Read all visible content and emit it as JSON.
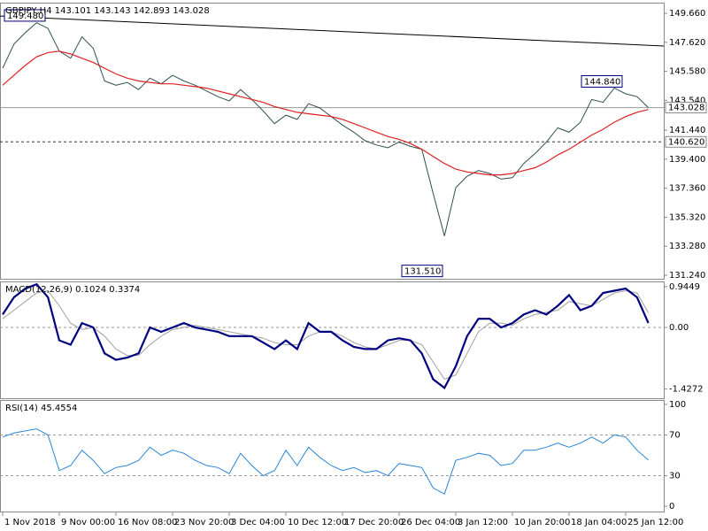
{
  "chart_data": [
    {
      "type": "price",
      "title": "GBPJPY,H4  143.101 143.143 142.893 143.028",
      "categories": [
        "1 Nov 2018",
        null,
        null,
        null,
        null,
        "9 Nov 00:00",
        null,
        null,
        null,
        null,
        "16 Nov 08:00",
        null,
        null,
        null,
        null,
        "23 Nov 20:00",
        null,
        null,
        null,
        null,
        "3 Dec 04:00",
        null,
        null,
        null,
        null,
        "10 Dec 12:00",
        null,
        null,
        null,
        null,
        "17 Dec 20:00",
        null,
        null,
        null,
        null,
        "26 Dec 04:00",
        null,
        null,
        null,
        null,
        "3 Jan 12:00",
        null,
        null,
        null,
        null,
        "10 Jan 20:00",
        null,
        null,
        null,
        null,
        "18 Jan 04:00",
        null,
        null,
        null,
        null,
        "25 Jan 12:00",
        null,
        null
      ],
      "series": [
        {
          "color": "#2f4f4f",
          "values": [
            145.8,
            147.5,
            148.3,
            149.0,
            148.6,
            147.0,
            146.5,
            148.0,
            147.2,
            144.9,
            144.6,
            144.8,
            144.3,
            145.1,
            144.7,
            145.3,
            144.9,
            144.6,
            144.2,
            143.8,
            143.5,
            144.3,
            143.6,
            142.8,
            141.9,
            142.5,
            142.2,
            143.3,
            143.0,
            142.4,
            141.8,
            141.3,
            140.7,
            140.4,
            140.2,
            140.6,
            140.3,
            140.1,
            137.0,
            134.0,
            137.4,
            138.2,
            138.6,
            138.4,
            138.0,
            138.1,
            139.1,
            139.8,
            140.6,
            141.6,
            141.3,
            142.0,
            143.6,
            143.4,
            144.4,
            144.0,
            143.8,
            143.028
          ]
        },
        {
          "color": "#e02020",
          "values": [
            144.6,
            145.3,
            146.0,
            146.6,
            146.9,
            147.0,
            146.8,
            146.5,
            146.2,
            145.8,
            145.4,
            145.1,
            144.9,
            144.8,
            144.7,
            144.7,
            144.6,
            144.5,
            144.4,
            144.2,
            144.0,
            143.8,
            143.6,
            143.4,
            143.1,
            142.9,
            142.7,
            142.6,
            142.5,
            142.4,
            142.2,
            141.9,
            141.6,
            141.3,
            141.0,
            140.8,
            140.5,
            140.1,
            139.6,
            139.1,
            138.7,
            138.5,
            138.4,
            138.3,
            138.3,
            138.4,
            138.6,
            138.8,
            139.2,
            139.7,
            140.1,
            140.6,
            141.1,
            141.5,
            142.0,
            142.4,
            142.7,
            142.9
          ]
        }
      ],
      "trendline": {
        "color": "#000000",
        "values": [
          149.47,
          147.36
        ]
      },
      "annotations": [
        {
          "text": "149.480",
          "value": 149.48
        },
        {
          "text": "144.840",
          "value": 144.84
        },
        {
          "text": "131.510",
          "value": 131.51
        }
      ],
      "hlines": [
        {
          "label": "143.028",
          "value": 143.028,
          "style": "solid"
        },
        {
          "label": "140.620",
          "value": 140.62,
          "style": "dashed"
        }
      ],
      "ylim": [
        130.99,
        150.41
      ],
      "yticks": [
        {
          "value": 149.66,
          "label": "149.660"
        },
        {
          "value": 147.62,
          "label": "147.620"
        },
        {
          "value": 145.58,
          "label": "145.580"
        },
        {
          "value": 143.54,
          "label": "143.540"
        },
        {
          "value": 141.44,
          "label": "141.440"
        },
        {
          "value": 139.4,
          "label": "139.400"
        },
        {
          "value": 137.36,
          "label": "137.360"
        },
        {
          "value": 135.32,
          "label": "135.320"
        },
        {
          "value": 133.28,
          "label": "133.280"
        },
        {
          "value": 131.24,
          "label": "131.240"
        }
      ]
    },
    {
      "type": "macd",
      "title": "MACD(12,26,9) 0.1024 0.3374",
      "series": [
        {
          "color": "#000080",
          "values": [
            0.3,
            0.7,
            0.9,
            1.0,
            0.7,
            -0.3,
            -0.4,
            0.1,
            0.0,
            -0.6,
            -0.75,
            -0.7,
            -0.6,
            0.0,
            -0.1,
            0.0,
            0.1,
            0.0,
            -0.05,
            -0.1,
            -0.2,
            -0.2,
            -0.2,
            -0.35,
            -0.5,
            -0.3,
            -0.5,
            0.1,
            -0.1,
            -0.1,
            -0.3,
            -0.45,
            -0.5,
            -0.5,
            -0.3,
            -0.25,
            -0.3,
            -0.6,
            -1.2,
            -1.4,
            -0.9,
            -0.2,
            0.2,
            0.2,
            0.0,
            0.1,
            0.3,
            0.4,
            0.3,
            0.5,
            0.75,
            0.4,
            0.5,
            0.8,
            0.85,
            0.9,
            0.7,
            0.1024
          ]
        },
        {
          "color": "#a0a0a0",
          "values": [
            0.2,
            0.4,
            0.6,
            0.8,
            0.85,
            0.5,
            0.1,
            -0.05,
            0.0,
            -0.2,
            -0.5,
            -0.65,
            -0.65,
            -0.4,
            -0.2,
            -0.05,
            0.0,
            0.05,
            0.0,
            -0.05,
            -0.1,
            -0.15,
            -0.2,
            -0.25,
            -0.35,
            -0.4,
            -0.4,
            -0.2,
            -0.1,
            -0.1,
            -0.2,
            -0.35,
            -0.45,
            -0.5,
            -0.4,
            -0.3,
            -0.3,
            -0.4,
            -0.8,
            -1.2,
            -1.1,
            -0.6,
            -0.1,
            0.1,
            0.1,
            0.05,
            0.2,
            0.3,
            0.35,
            0.4,
            0.6,
            0.55,
            0.5,
            0.65,
            0.8,
            0.85,
            0.8,
            0.3374
          ]
        }
      ],
      "ylim": [
        -1.64,
        1.066
      ],
      "yticks": [
        0.9449,
        {
          "value": 0,
          "label": "0.00"
        },
        -1.4272
      ],
      "dashed_levels": [
        0
      ]
    },
    {
      "type": "rsi",
      "title": "RSI(14) 45.4554",
      "series": [
        {
          "color": "#2b86d6",
          "values": [
            68,
            72,
            74,
            76,
            70,
            35,
            40,
            55,
            45,
            32,
            38,
            40,
            45,
            58,
            50,
            55,
            52,
            45,
            40,
            38,
            32,
            52,
            40,
            30,
            35,
            55,
            40,
            58,
            48,
            40,
            35,
            38,
            33,
            35,
            30,
            42,
            40,
            38,
            18,
            12,
            45,
            48,
            52,
            50,
            40,
            42,
            55,
            55,
            58,
            62,
            58,
            62,
            68,
            62,
            70,
            68,
            55,
            45.4554
          ]
        }
      ],
      "ylim": [
        -5.2,
        104.3
      ],
      "yticks": [
        100,
        70,
        30,
        0
      ],
      "dashed_levels": [
        70,
        30
      ]
    }
  ]
}
